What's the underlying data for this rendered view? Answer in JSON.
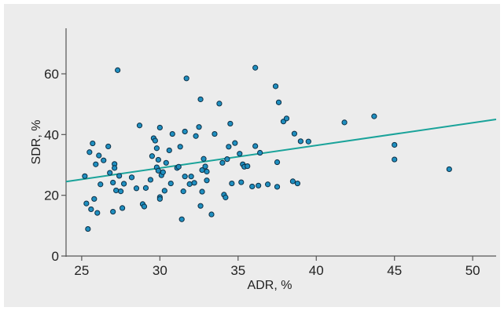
{
  "chart_data": {
    "type": "scatter",
    "title": "",
    "xlabel": "ADR, %",
    "ylabel": "SDR, %",
    "xlim": [
      24,
      51.5
    ],
    "ylim": [
      0,
      75
    ],
    "xticks": [
      25,
      30,
      35,
      40,
      45,
      50
    ],
    "yticks": [
      0,
      20,
      40,
      60
    ],
    "grid": false,
    "legend": "none",
    "colors": {
      "panel_background": "#ececec",
      "point_fill": "#1f8fc0",
      "point_edge": "#0d2f45",
      "trend_line": "#1aa39a",
      "axis": "#555555"
    },
    "trend_line": {
      "x": [
        24,
        51.5
      ],
      "y": [
        24.5,
        45.0
      ]
    },
    "series": [
      {
        "points": [
          [
            25.2,
            26.3
          ],
          [
            25.3,
            17.3
          ],
          [
            25.4,
            8.9
          ],
          [
            25.5,
            34.2
          ],
          [
            25.6,
            15.4
          ],
          [
            25.7,
            37.1
          ],
          [
            25.8,
            18.8
          ],
          [
            25.9,
            30.2
          ],
          [
            26.0,
            14.2
          ],
          [
            26.1,
            33.1
          ],
          [
            26.2,
            23.6
          ],
          [
            26.4,
            31.5
          ],
          [
            26.7,
            36.1
          ],
          [
            26.8,
            27.4
          ],
          [
            27.0,
            24.2
          ],
          [
            27.0,
            14.6
          ],
          [
            27.1,
            30.3
          ],
          [
            27.1,
            29.0
          ],
          [
            27.2,
            21.6
          ],
          [
            27.3,
            61.2
          ],
          [
            27.4,
            26.4
          ],
          [
            27.5,
            21.3
          ],
          [
            27.6,
            15.8
          ],
          [
            27.7,
            23.8
          ],
          [
            28.2,
            25.9
          ],
          [
            28.5,
            22.3
          ],
          [
            28.7,
            43.0
          ],
          [
            28.9,
            17.1
          ],
          [
            29.0,
            16.3
          ],
          [
            29.1,
            22.4
          ],
          [
            29.4,
            25.1
          ],
          [
            29.5,
            32.9
          ],
          [
            29.6,
            38.8
          ],
          [
            29.7,
            38.0
          ],
          [
            29.8,
            35.5
          ],
          [
            29.8,
            29.2
          ],
          [
            29.9,
            28.1
          ],
          [
            29.9,
            31.7
          ],
          [
            30.0,
            19.4
          ],
          [
            30.0,
            18.8
          ],
          [
            30.0,
            42.3
          ],
          [
            30.1,
            26.6
          ],
          [
            30.2,
            27.6
          ],
          [
            30.3,
            21.5
          ],
          [
            30.4,
            30.7
          ],
          [
            30.6,
            34.8
          ],
          [
            30.7,
            23.9
          ],
          [
            30.8,
            40.2
          ],
          [
            31.1,
            29.0
          ],
          [
            31.2,
            29.4
          ],
          [
            31.3,
            36.0
          ],
          [
            31.4,
            12.1
          ],
          [
            31.5,
            21.3
          ],
          [
            31.6,
            26.2
          ],
          [
            31.6,
            41.0
          ],
          [
            31.7,
            58.5
          ],
          [
            31.9,
            23.7
          ],
          [
            32.0,
            26.2
          ],
          [
            32.2,
            24.1
          ],
          [
            32.3,
            39.5
          ],
          [
            32.5,
            42.5
          ],
          [
            32.6,
            16.5
          ],
          [
            32.6,
            51.6
          ],
          [
            32.7,
            21.2
          ],
          [
            32.7,
            28.3
          ],
          [
            32.8,
            32.0
          ],
          [
            32.9,
            29.5
          ],
          [
            33.0,
            27.8
          ],
          [
            33.0,
            24.9
          ],
          [
            33.3,
            13.7
          ],
          [
            33.5,
            40.2
          ],
          [
            33.8,
            50.2
          ],
          [
            34.0,
            30.7
          ],
          [
            34.1,
            20.2
          ],
          [
            34.2,
            19.3
          ],
          [
            34.3,
            31.9
          ],
          [
            34.4,
            36.0
          ],
          [
            34.5,
            43.6
          ],
          [
            34.6,
            23.9
          ],
          [
            34.8,
            37.2
          ],
          [
            35.1,
            33.7
          ],
          [
            35.2,
            24.3
          ],
          [
            35.3,
            30.2
          ],
          [
            35.4,
            29.4
          ],
          [
            35.6,
            29.6
          ],
          [
            35.9,
            22.9
          ],
          [
            36.1,
            62.0
          ],
          [
            36.1,
            36.2
          ],
          [
            36.3,
            23.2
          ],
          [
            36.4,
            34.0
          ],
          [
            36.9,
            23.6
          ],
          [
            37.4,
            55.9
          ],
          [
            37.5,
            22.8
          ],
          [
            37.5,
            30.9
          ],
          [
            37.6,
            50.6
          ],
          [
            37.9,
            44.3
          ],
          [
            38.1,
            45.3
          ],
          [
            38.5,
            24.6
          ],
          [
            38.6,
            40.3
          ],
          [
            38.8,
            23.9
          ],
          [
            39.0,
            37.8
          ],
          [
            39.5,
            37.7
          ],
          [
            41.8,
            44.0
          ],
          [
            43.7,
            46.0
          ],
          [
            45.0,
            31.8
          ],
          [
            45.0,
            36.6
          ],
          [
            48.5,
            28.6
          ]
        ]
      }
    ]
  }
}
